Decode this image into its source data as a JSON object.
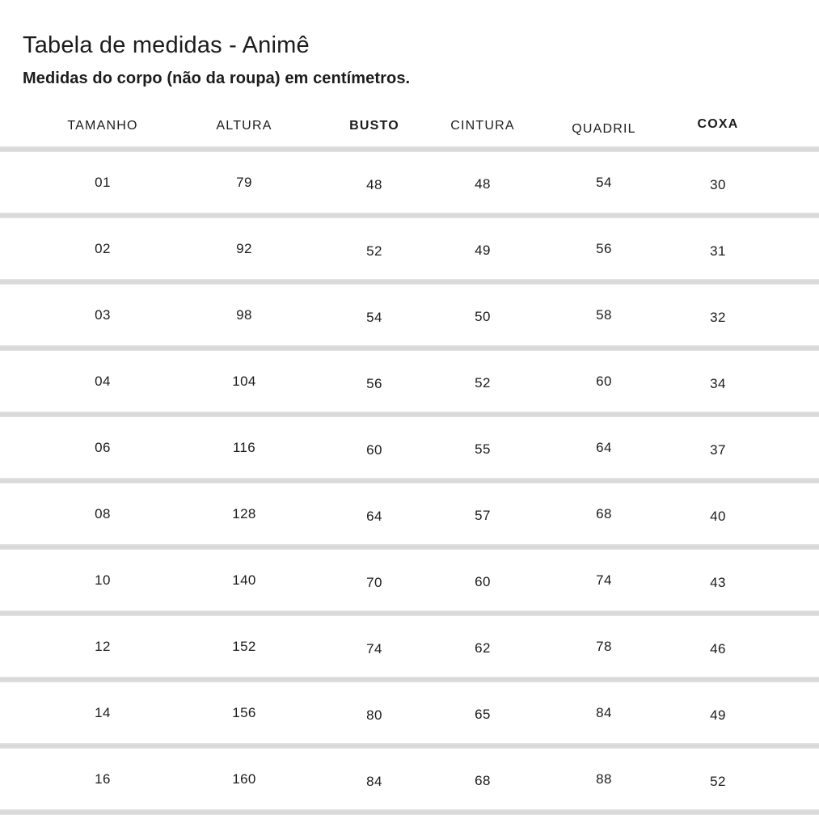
{
  "page": {
    "title": "Tabela de medidas - Animê",
    "subtitle": "Medidas do corpo (não da roupa) em centímetros."
  },
  "table": {
    "columns": [
      {
        "label": "TAMANHO",
        "bold": false
      },
      {
        "label": "ALTURA",
        "bold": false
      },
      {
        "label": "BUSTO",
        "bold": true
      },
      {
        "label": "CINTURA",
        "bold": false
      },
      {
        "label": "QUADRIL",
        "bold": false
      },
      {
        "label": "COXA",
        "bold": true
      }
    ],
    "rows": [
      [
        "01",
        "79",
        "48",
        "48",
        "54",
        "30"
      ],
      [
        "02",
        "92",
        "52",
        "49",
        "56",
        "31"
      ],
      [
        "03",
        "98",
        "54",
        "50",
        "58",
        "32"
      ],
      [
        "04",
        "104",
        "56",
        "52",
        "60",
        "34"
      ],
      [
        "06",
        "116",
        "60",
        "55",
        "64",
        "37"
      ],
      [
        "08",
        "128",
        "64",
        "57",
        "68",
        "40"
      ],
      [
        "10",
        "140",
        "70",
        "60",
        "74",
        "43"
      ],
      [
        "12",
        "152",
        "74",
        "62",
        "78",
        "46"
      ],
      [
        "14",
        "156",
        "80",
        "65",
        "84",
        "49"
      ],
      [
        "16",
        "160",
        "84",
        "68",
        "88",
        "52"
      ]
    ]
  },
  "colors": {
    "text": "#1c1c1c",
    "divider": "#d9d9d9",
    "background": "#ffffff"
  },
  "chart_data": {
    "type": "table",
    "title": "Tabela de medidas - Animê",
    "subtitle": "Medidas do corpo (não da roupa) em centímetros.",
    "columns": [
      "TAMANHO",
      "ALTURA",
      "BUSTO",
      "CINTURA",
      "QUADRIL",
      "COXA"
    ],
    "rows": [
      [
        1,
        79,
        48,
        48,
        54,
        30
      ],
      [
        2,
        92,
        52,
        49,
        56,
        31
      ],
      [
        3,
        98,
        54,
        50,
        58,
        32
      ],
      [
        4,
        104,
        56,
        52,
        60,
        34
      ],
      [
        6,
        116,
        60,
        55,
        64,
        37
      ],
      [
        8,
        128,
        64,
        57,
        68,
        40
      ],
      [
        10,
        140,
        70,
        60,
        74,
        43
      ],
      [
        12,
        152,
        74,
        62,
        78,
        46
      ],
      [
        14,
        156,
        80,
        65,
        84,
        49
      ],
      [
        16,
        160,
        84,
        68,
        88,
        52
      ]
    ],
    "units": "cm",
    "notes": "Body measurements (not garment) in centimeters"
  }
}
